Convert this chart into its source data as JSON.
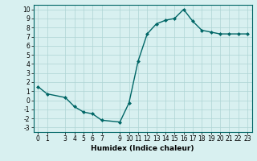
{
  "x": [
    0,
    1,
    3,
    4,
    5,
    6,
    7,
    9,
    10,
    11,
    12,
    13,
    14,
    15,
    16,
    17,
    18,
    19,
    20,
    21,
    22,
    23
  ],
  "y": [
    1.5,
    0.7,
    0.3,
    -0.7,
    -1.3,
    -1.5,
    -2.2,
    -2.4,
    -0.3,
    4.3,
    7.3,
    8.4,
    8.8,
    9.0,
    10.0,
    8.7,
    7.7,
    7.5,
    7.3,
    7.3,
    7.3,
    7.3
  ],
  "line_color": "#006666",
  "marker": "D",
  "marker_size": 2,
  "bg_color": "#d8f0f0",
  "grid_color": "#aed4d4",
  "xlabel": "Humidex (Indice chaleur)",
  "xlim": [
    -0.5,
    23.5
  ],
  "ylim": [
    -3.5,
    10.5
  ],
  "yticks": [
    -3,
    -2,
    -1,
    0,
    1,
    2,
    3,
    4,
    5,
    6,
    7,
    8,
    9,
    10
  ],
  "xticks": [
    0,
    1,
    3,
    4,
    5,
    6,
    7,
    9,
    10,
    11,
    12,
    13,
    14,
    15,
    16,
    17,
    18,
    19,
    20,
    21,
    22,
    23
  ],
  "tick_labelsize": 5.5,
  "xlabel_fontsize": 6.5,
  "line_width": 1.0
}
